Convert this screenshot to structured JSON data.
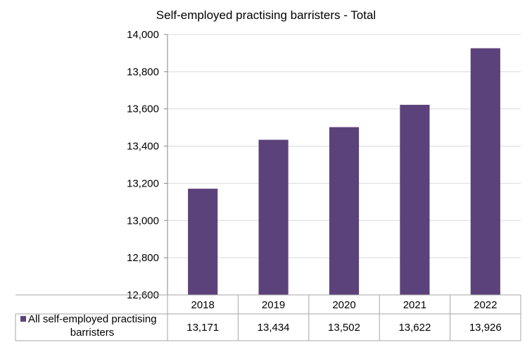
{
  "chart_data": {
    "type": "bar",
    "title": "Self-employed practising barristers - Total",
    "xlabel": "",
    "ylabel": "",
    "categories": [
      "2018",
      "2019",
      "2020",
      "2021",
      "2022"
    ],
    "series": [
      {
        "name": "All self-employed practising barristers",
        "values": [
          13171,
          13434,
          13502,
          13622,
          13926
        ],
        "value_labels": [
          "13,171",
          "13,434",
          "13,502",
          "13,622",
          "13,926"
        ],
        "color": "#5c427a"
      }
    ],
    "ylim": [
      12600,
      14000
    ],
    "yticks": [
      12600,
      12800,
      13000,
      13200,
      13400,
      13600,
      13800,
      14000
    ],
    "ytick_labels": [
      "12,600",
      "12,800",
      "13,000",
      "13,200",
      "13,400",
      "13,600",
      "13,800",
      "14,000"
    ],
    "grid": true,
    "legend": "data-table-below",
    "legend_lines": [
      "All self-employed practising",
      "barristers"
    ]
  }
}
